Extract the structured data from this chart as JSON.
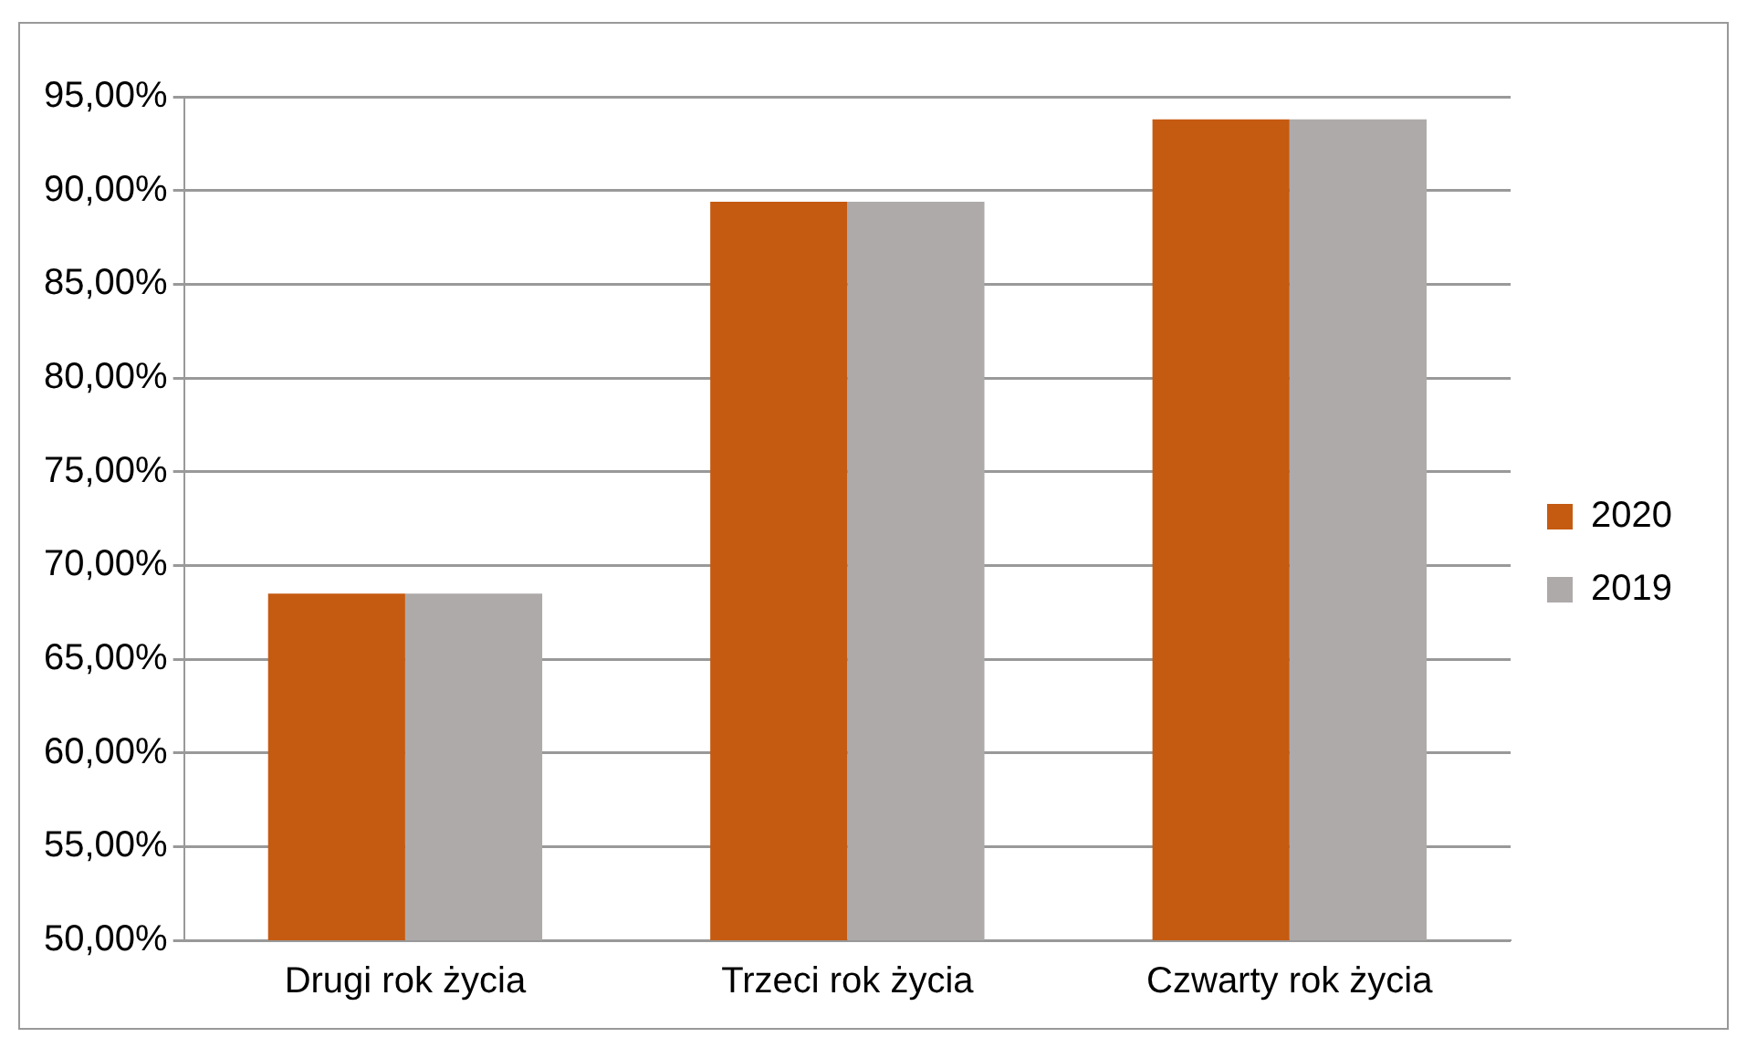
{
  "chart_data": {
    "type": "bar",
    "categories": [
      "Drugi rok życia",
      "Trzeci rok życia",
      "Czwarty rok życia"
    ],
    "series": [
      {
        "name": "2020",
        "color": "#c55a11",
        "values": [
          68.5,
          89.4,
          93.8
        ]
      },
      {
        "name": "2019",
        "color": "#aeaaaa",
        "values": [
          68.5,
          89.4,
          93.8
        ]
      }
    ],
    "ylim": [
      50,
      95
    ],
    "yticks": [
      {
        "value": 50,
        "label": "50,00%"
      },
      {
        "value": 55,
        "label": "55,00%"
      },
      {
        "value": 60,
        "label": "60,00%"
      },
      {
        "value": 65,
        "label": "65,00%"
      },
      {
        "value": 70,
        "label": "70,00%"
      },
      {
        "value": 75,
        "label": "75,00%"
      },
      {
        "value": 80,
        "label": "80,00%"
      },
      {
        "value": 85,
        "label": "85,00%"
      },
      {
        "value": 90,
        "label": "90,00%"
      },
      {
        "value": 95,
        "label": "95,00%"
      }
    ],
    "grid": "y",
    "legend": "right"
  }
}
